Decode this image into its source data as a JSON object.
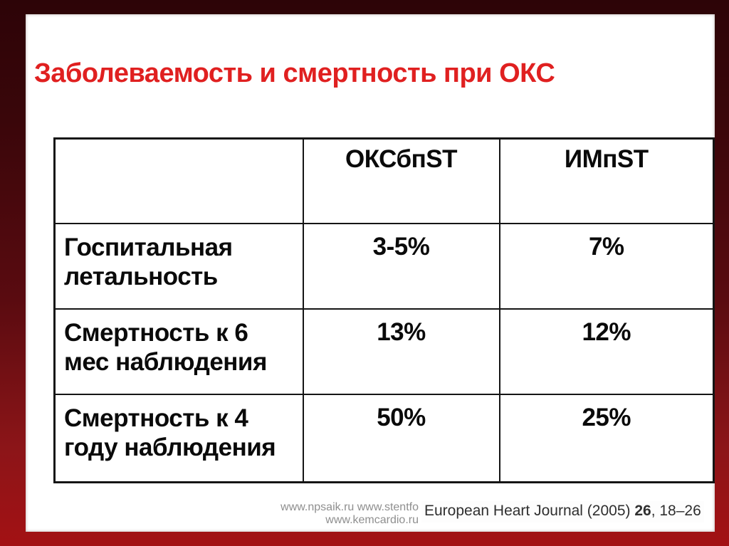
{
  "slide": {
    "title": "Заболеваемость и смертность при ОКС"
  },
  "table": {
    "col_headers": [
      "ОКСбпST",
      "ИМпST"
    ],
    "rows": [
      {
        "label": "Госпитальная\nлетальность",
        "oksbpst": "3-5%",
        "impst": "7%"
      },
      {
        "label": "Смертность к 6\nмес наблюдения",
        "oksbpst": "13%",
        "impst": "12%"
      },
      {
        "label": "Смертность к 4\nгоду наблюдения",
        "oksbpst": "50%",
        "impst": "25%"
      }
    ]
  },
  "footer": {
    "watermarks": "www.npsaik.ru www.stentfo\nwww.kemcardio.ru",
    "citation_prefix": "European Heart Journal (2005) ",
    "citation_volume": "26",
    "citation_pages": ", 18–26"
  },
  "colors": {
    "frame_top": "#2d0407",
    "frame_bottom": "#a31114",
    "title_red": "#e02020",
    "table_border": "#151515",
    "watermark_gray": "#8f8f8f",
    "citation_dark": "#2f2f2f"
  }
}
